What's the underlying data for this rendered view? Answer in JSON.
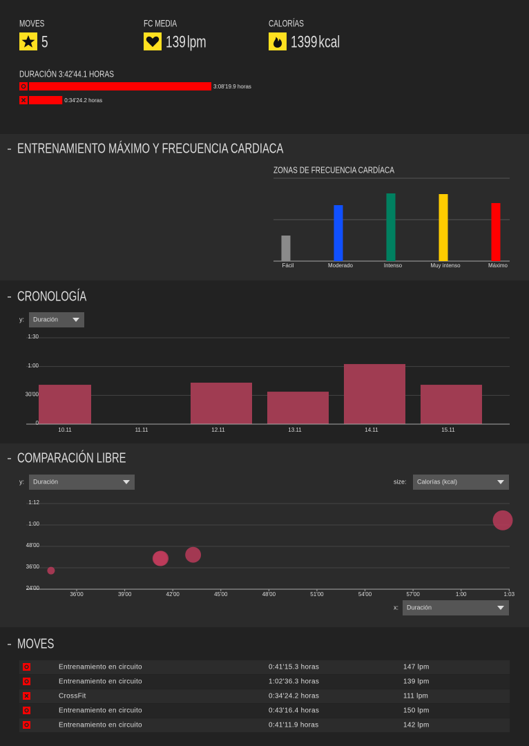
{
  "summary": {
    "items": [
      {
        "label": "MOVES",
        "value": 5
      },
      {
        "label": "FC MEDIA",
        "value": 139,
        "unit": "lpm"
      },
      {
        "label": "CALORÍAS",
        "value": 1399,
        "unit": "kcal"
      }
    ]
  },
  "duration": {
    "title": "DURACIÓN 3:42'44.1 HORAS",
    "values": [
      188.33,
      34.4
    ],
    "value_labels": [
      "3:08'19.9 horas",
      "0:34'24.2 horas"
    ],
    "color": "#ff0000"
  },
  "sections": [
    "ENTRENAMIENTO MÁXIMO Y FRECUENCIA CARDIACA",
    "CRONOLOGÍA",
    "COMPARACIÓN LIBRE",
    "MOVES"
  ],
  "chart_data": [
    {
      "type": "bar",
      "title": "ZONAS DE FRECUENCIA CARDÍACA",
      "categories": [
        "Fácil",
        "Moderado",
        "Intenso",
        "Muy intenso",
        "Máximo"
      ],
      "values": [
        37,
        81,
        98,
        97,
        84
      ],
      "colors": [
        "#8a8a8a",
        "#1050ff",
        "#008060",
        "#ffcc00",
        "#ff0000"
      ],
      "ylim": [
        0,
        120
      ]
    },
    {
      "type": "bar",
      "controls": [
        {
          "label": "y:",
          "value": "Duración"
        }
      ],
      "categories": [
        "10.11",
        "11.11",
        "12.11",
        "13.11",
        "14.11",
        "15.11"
      ],
      "values": [
        41.0,
        null,
        43.2,
        33.8,
        62.6,
        41.0
      ],
      "color": "#a03c52",
      "ylim": [
        0,
        90
      ],
      "yticks": [
        0,
        {
          "value": 30,
          "label": "30'00"
        },
        {
          "value": 60,
          "label": "1:00"
        },
        {
          "value": 90,
          "label": "1:30"
        }
      ],
      "grid": true
    },
    {
      "type": "scatter",
      "controls": [
        {
          "label": "y:",
          "value": "Duración"
        },
        {
          "label": "size:",
          "value": "Calorías (kcal)"
        },
        {
          "label": "x:",
          "value": "Duración"
        }
      ],
      "x": [
        41.26,
        62.6,
        34.4,
        43.27,
        41.2
      ],
      "y": [
        41.26,
        62.6,
        34.4,
        43.27,
        41.2
      ],
      "sizes": [
        280,
        480,
        69,
        300,
        270
      ],
      "color": "#c23c5c",
      "xlim": [
        33.93,
        63.03
      ],
      "ylim": [
        24,
        72
      ],
      "xticks": [
        {
          "value": 36,
          "label": "36'00"
        },
        {
          "value": 39,
          "label": "39'00"
        },
        {
          "value": 42,
          "label": "42'00"
        },
        {
          "value": 45,
          "label": "45'00"
        },
        {
          "value": 48,
          "label": "48'00"
        },
        {
          "value": 51,
          "label": "51'00"
        },
        {
          "value": 54,
          "label": "54'00"
        },
        {
          "value": 57,
          "label": "57'00"
        },
        {
          "value": 60,
          "label": "1:00"
        },
        {
          "value": 63,
          "label": "1:03"
        }
      ],
      "yticks": [
        {
          "value": 24,
          "label": "24'00"
        },
        {
          "value": 36,
          "label": "36'00"
        },
        {
          "value": 48,
          "label": "48'00"
        },
        {
          "value": 60,
          "label": "1:00"
        },
        {
          "value": 72,
          "label": "1:12"
        }
      ],
      "grid": true
    }
  ],
  "moves": {
    "rows": [
      [
        "Entrenamiento en circuito",
        "0:41'15.3 horas",
        "147 lpm"
      ],
      [
        "Entrenamiento en circuito",
        "1:02'36.3 horas",
        "139 lpm"
      ],
      [
        "CrossFit",
        "0:34'24.2 horas",
        "111 lpm"
      ],
      [
        "Entrenamiento en circuito",
        "0:43'16.4 horas",
        "150 lpm"
      ],
      [
        "Entrenamiento en circuito",
        "0:41'11.9 horas",
        "142 lpm"
      ]
    ]
  }
}
